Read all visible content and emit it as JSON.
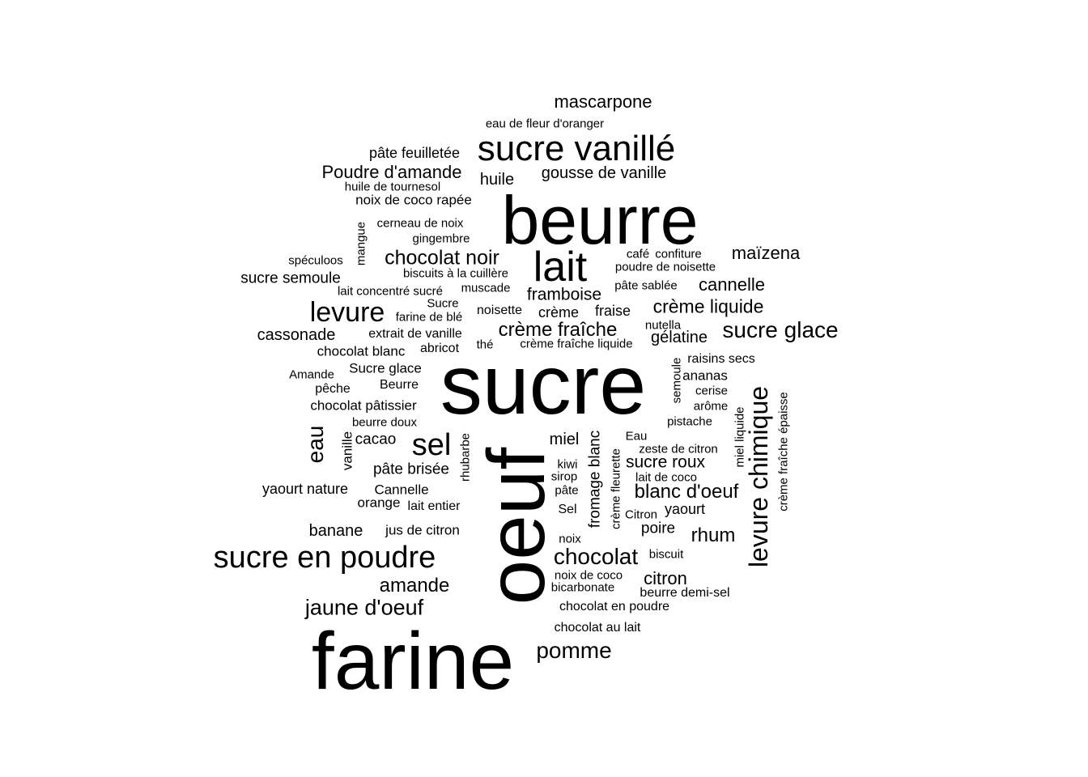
{
  "wordcloud": {
    "colors": {
      "text": "#000000",
      "background": "#ffffff"
    },
    "words": {
      "sucre": "sucre",
      "oeuf": "oeuf",
      "farine": "farine",
      "beurre": "beurre",
      "sucre_vanille": "sucre vanillé",
      "lait": "lait",
      "sucre_en_poudre": "sucre en poudre",
      "levure_chimique": "levure chimique",
      "sel": "sel",
      "levure": "levure",
      "sucre_glace": "sucre glace",
      "chocolat": "chocolat",
      "pomme": "pomme",
      "jaune_oeuf": "jaune d'oeuf",
      "chocolat_noir": "chocolat noir",
      "creme_fraiche": "crème fraîche",
      "creme_liquide": "crème liquide",
      "blanc_oeuf": "blanc d'oeuf",
      "amande": "amande",
      "rhum": "rhum",
      "mascarpone": "mascarpone",
      "poudre_amande": "Poudre d'amande",
      "gousse_vanille": "gousse de vanille",
      "maizena": "maïzena",
      "cannelle": "cannelle",
      "framboise": "framboise",
      "eau": "eau",
      "citron": "citron",
      "cassonade": "cassonade",
      "sucre_roux": "sucre roux",
      "sucre_semoule": "sucre semoule",
      "banane": "banane",
      "gelatine": "gélatine",
      "miel": "miel",
      "huile": "huile",
      "pate_feuilletee": "pâte feuilletée",
      "creme": "crème",
      "fraise": "fraise",
      "cacao": "cacao",
      "pate_brisee": "pâte brisée",
      "yaourt_nature": "yaourt nature",
      "fromage_blanc": "fromage blanc",
      "poire": "poire",
      "yaourt": "yaourt",
      "chocolat_blanc": "chocolat blanc",
      "chocolat_patissier": "chocolat pâtissier",
      "jus_de_citron": "jus de citron",
      "noix_coco_rapee": "noix de coco rapée",
      "cannelle_cap": "Cannelle",
      "sucre_glace_cap": "Sucre glace",
      "raisins_secs": "raisins secs",
      "ananas": "ananas",
      "noisette": "noisette",
      "extrait_vanille": "extrait de vanille",
      "abricot": "abricot",
      "vanille": "vanille",
      "beurre_demi_sel": "beurre demi-sel",
      "chocolat_en_poudre": "chocolat en poudre",
      "chocolat_au_lait": "chocolat au lait",
      "orange": "orange",
      "lait_entier": "lait entier",
      "eau_fleur_oranger": "eau de fleur d'oranger",
      "huile_tournesol": "huile de tournesol",
      "cerneau_noix": "cerneau de noix",
      "gingembre": "gingembre",
      "mangue": "mangue",
      "speculoos": "spéculoos",
      "biscuits_cuillere": "biscuits à la cuillère",
      "cafe": "café",
      "confiture": "confiture",
      "poudre_noisette": "poudre de noisette",
      "lait_concentre_sucre": "lait concentré sucré",
      "muscade": "muscade",
      "pate_sablee": "pâte sablée",
      "sucre_cap": "Sucre",
      "farine_ble": "farine de blé",
      "nutella": "nutella",
      "the": "thé",
      "creme_fraiche_liquide": "crème fraîche liquide",
      "amande_cap": "Amande",
      "semoule": "semoule",
      "peche": "pêche",
      "beurre_cap": "Beurre",
      "cerise": "cerise",
      "arome": "arôme",
      "pistache": "pistache",
      "beurre_doux": "beurre doux",
      "miel_liquide": "miel liquide",
      "creme_fraiche_epaisse": "crème fraîche épaisse",
      "rhubarbe": "rhubarbe",
      "eau_cap": "Eau",
      "zeste_citron": "zeste de citron",
      "creme_fleurette": "crème fleurette",
      "kiwi": "kiwi",
      "sirop": "sirop",
      "lait_coco": "lait de coco",
      "pate": "pâte",
      "sel_cap": "Sel",
      "citron_cap": "Citron",
      "noix": "noix",
      "biscuit": "biscuit",
      "noix_de_coco": "noix de coco",
      "bicarbonate": "bicarbonate"
    }
  }
}
